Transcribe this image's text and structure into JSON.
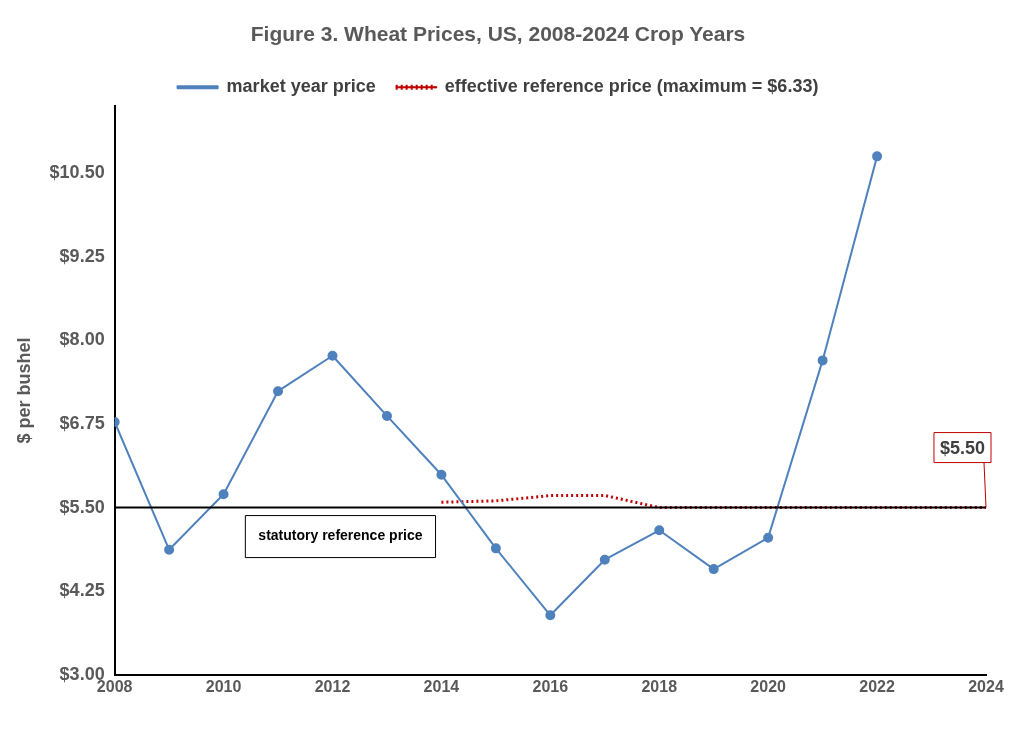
{
  "chart_data": {
    "type": "line",
    "title": "Figure 3. Wheat Prices, US, 2008-2024 Crop Years",
    "ylabel": "$ per bushel",
    "x": [
      2008,
      2009,
      2010,
      2011,
      2012,
      2013,
      2014,
      2015,
      2016,
      2017,
      2018,
      2019,
      2020,
      2021,
      2022
    ],
    "series": [
      {
        "name": "market year price",
        "color": "#4f81bd",
        "marker": "circle",
        "line_style": "solid",
        "values": [
          6.78,
          4.87,
          5.7,
          7.24,
          7.77,
          6.87,
          5.99,
          4.89,
          3.89,
          4.72,
          5.16,
          4.58,
          5.05,
          7.7,
          10.75
        ]
      },
      {
        "name": "effective reference price (maximum = $6.33)",
        "color": "#c00000",
        "marker": "none",
        "line_style": "dotted",
        "x": [
          2014,
          2015,
          2016,
          2017,
          2018,
          2019,
          2020,
          2021,
          2022,
          2023,
          2024
        ],
        "values": [
          5.58,
          5.6,
          5.68,
          5.68,
          5.5,
          5.5,
          5.5,
          5.5,
          5.5,
          5.5,
          5.5
        ]
      }
    ],
    "xlim": [
      2008,
      2024
    ],
    "xticks": [
      2008,
      2010,
      2012,
      2014,
      2016,
      2018,
      2020,
      2022,
      2024
    ],
    "ylim": [
      3,
      11.5
    ],
    "yticks": [
      {
        "value": 3,
        "label": "$3.00"
      },
      {
        "value": 4.25,
        "label": "$4.25"
      },
      {
        "value": 5.5,
        "label": "$5.50"
      },
      {
        "value": 6.75,
        "label": "$6.75"
      },
      {
        "value": 8,
        "label": "$8.00"
      },
      {
        "value": 9.25,
        "label": "$9.25"
      },
      {
        "value": 10.5,
        "label": "$10.50"
      }
    ],
    "ref_lines": [
      {
        "axis": "y",
        "value": 5.5,
        "label": "statutory reference price",
        "color": "#000000"
      }
    ],
    "annotations": [
      {
        "text": "$5.50",
        "x": 2024,
        "y": 5.5
      }
    ],
    "grid": false,
    "legend": "top"
  }
}
